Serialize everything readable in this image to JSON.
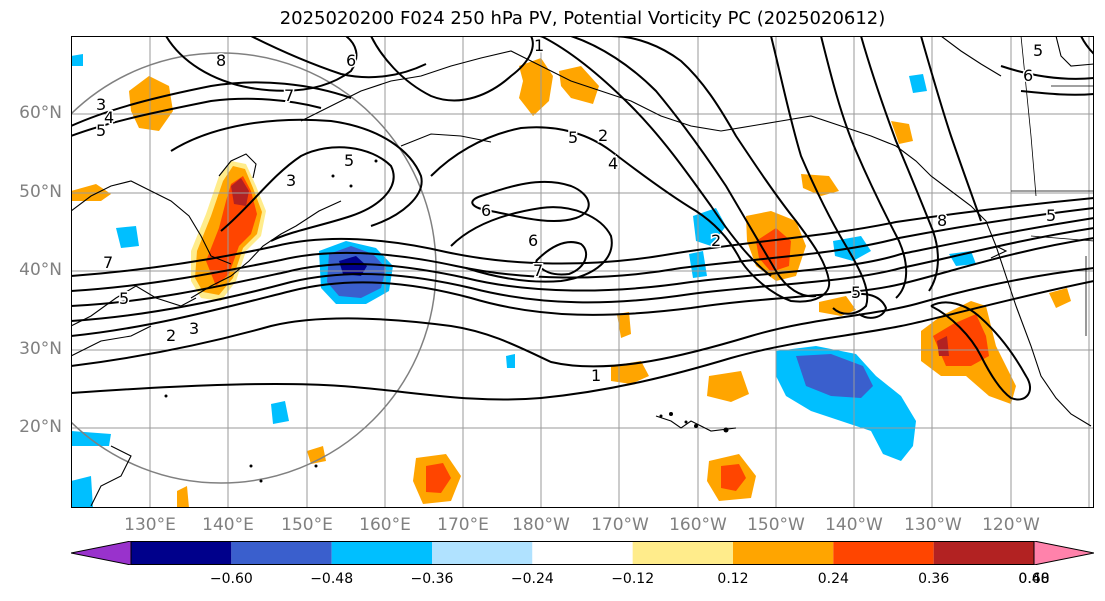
{
  "title": "2025020200 F024 250 hPa PV, Potential Vorticity PC (2025020612)",
  "lat_labels": [
    "60°N",
    "50°N",
    "40°N",
    "30°N",
    "20°N"
  ],
  "lon_labels": [
    "130°E",
    "140°E",
    "150°E",
    "160°E",
    "170°E",
    "180°W",
    "170°W",
    "160°W",
    "150°W",
    "140°W",
    "130°W",
    "120°W"
  ],
  "contour_labels": [
    "8",
    "7",
    "6",
    "5",
    "4",
    "3",
    "1",
    "2",
    "5",
    "4",
    "3",
    "5",
    "6",
    "7",
    "6",
    "7",
    "5",
    "3",
    "2",
    "1",
    "2",
    "8",
    "5",
    "6",
    "5",
    "5"
  ],
  "colorbar": {
    "colors": [
      "#9932cc",
      "#00008b",
      "#3a5fcd",
      "#00bfff",
      "#b0e2ff",
      "#ffffff",
      "#ffec8b",
      "#ffa500",
      "#ff4500",
      "#b22222",
      "#ff82ab"
    ],
    "ticks": [
      "−0.60",
      "−0.48",
      "−0.36",
      "−0.24",
      "−0.12",
      "0.12",
      "0.24",
      "0.36",
      "0.48",
      "0.60"
    ]
  }
}
